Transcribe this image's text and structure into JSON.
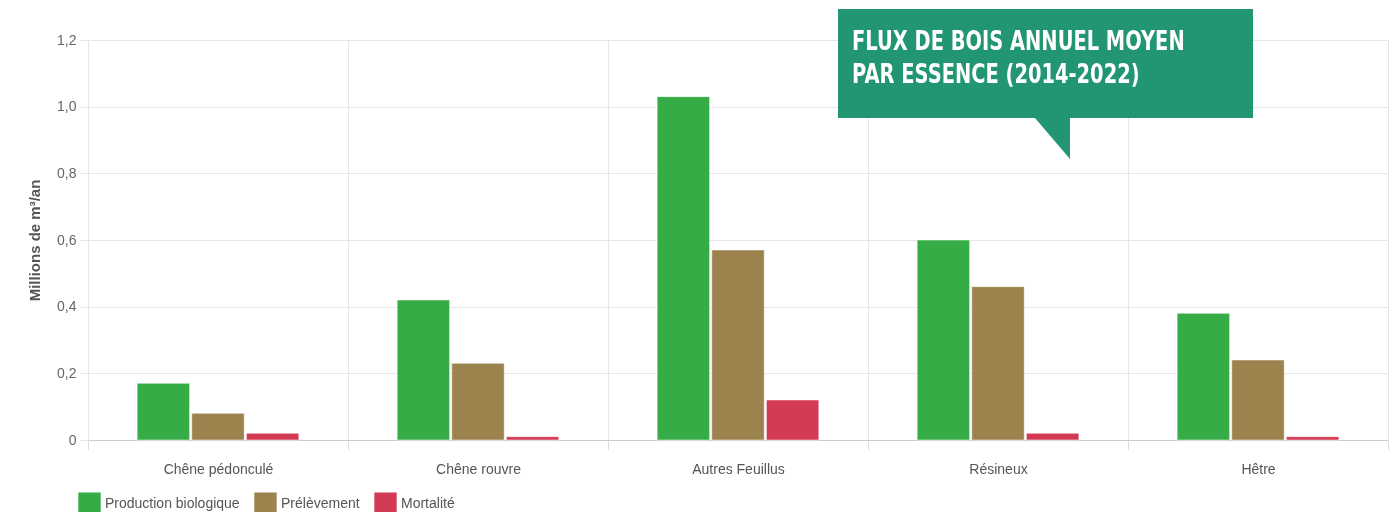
{
  "chart_data": {
    "type": "bar",
    "title": "FLUX DE BOIS ANNUEL MOYEN\nPAR ESSENCE (2014-2022)",
    "ylabel": "Millions de m³/an",
    "categories": [
      "Chêne pédonculé",
      "Chêne rouvre",
      "Autres Feuillus",
      "Résineux",
      "Hêtre"
    ],
    "series": [
      {
        "name": "Production biologique",
        "color": "#35ac45",
        "values": [
          0.17,
          0.42,
          1.03,
          0.6,
          0.38
        ]
      },
      {
        "name": "Prélèvement",
        "color": "#9c824d",
        "values": [
          0.08,
          0.23,
          0.57,
          0.46,
          0.24
        ]
      },
      {
        "name": "Mortalité",
        "color": "#d33b55",
        "values": [
          0.02,
          0.01,
          0.12,
          0.02,
          0.01
        ]
      }
    ],
    "ylim": [
      0,
      1.2
    ],
    "yticks": [
      0,
      {
        "value": 0.2,
        "label": "0,2"
      },
      {
        "value": 0.4,
        "label": "0,4"
      },
      {
        "value": 0.6,
        "label": "0,6"
      },
      {
        "value": 0.8,
        "label": "0,8"
      },
      {
        "value": 1.0,
        "label": "1,0"
      },
      {
        "value": 1.2,
        "label": "1,2"
      }
    ],
    "grid": true,
    "legend": "bottom left"
  }
}
